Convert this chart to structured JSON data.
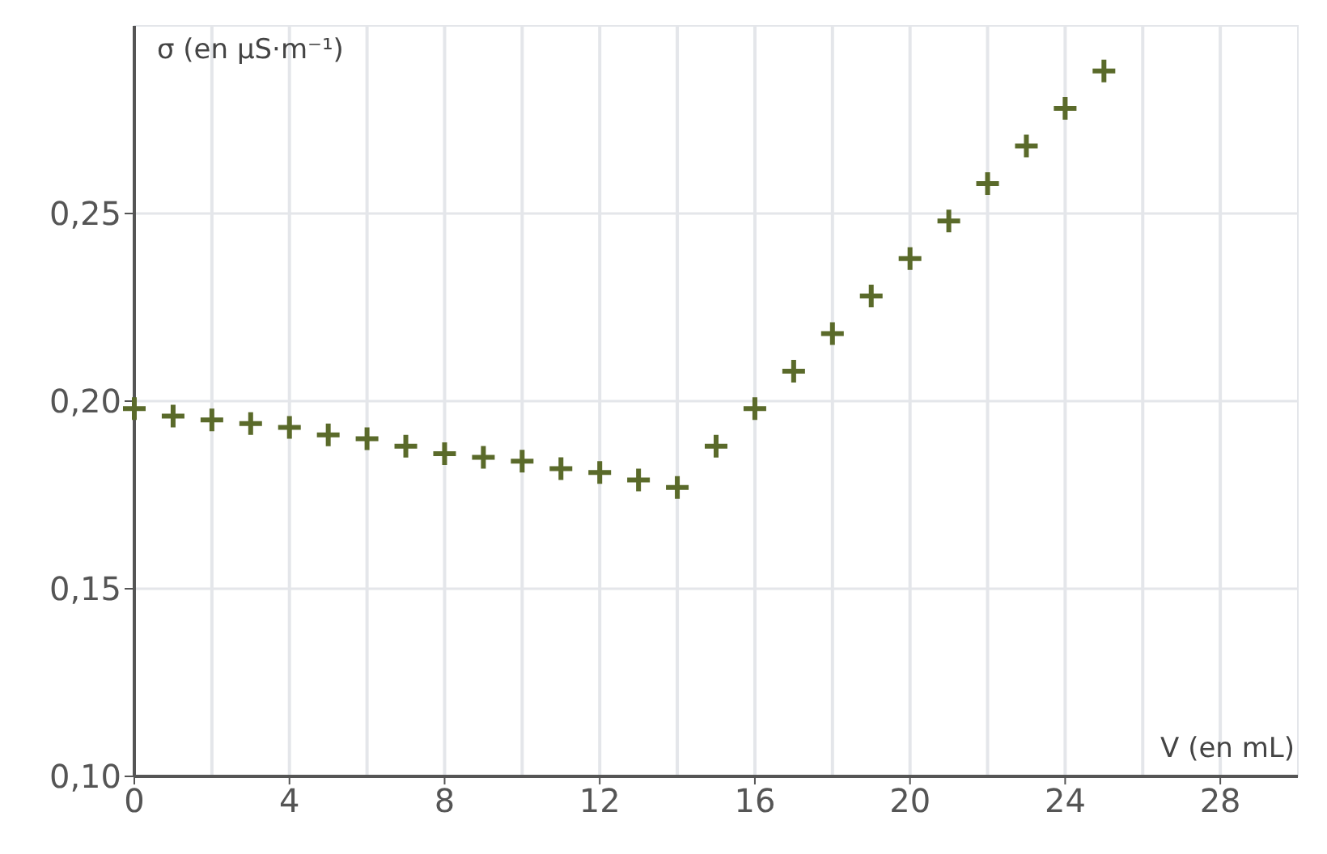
{
  "chart_data": {
    "type": "scatter",
    "xlabel": "V (en mL)",
    "ylabel": "σ (en µS·m⁻¹)",
    "x": [
      0,
      1,
      2,
      3,
      4,
      5,
      6,
      7,
      8,
      9,
      10,
      11,
      12,
      13,
      14,
      15,
      16,
      17,
      18,
      19,
      20,
      21,
      22,
      23,
      24,
      25
    ],
    "series": [
      {
        "color": "#5a6a2a",
        "values": [
          0.198,
          0.196,
          0.195,
          0.194,
          0.193,
          0.191,
          0.19,
          0.188,
          0.186,
          0.185,
          0.184,
          0.182,
          0.181,
          0.179,
          0.177,
          0.188,
          0.198,
          0.208,
          0.218,
          0.228,
          0.238,
          0.248,
          0.258,
          0.268,
          0.278,
          0.288
        ]
      }
    ],
    "marker": "cross",
    "grid": true,
    "xlim": [
      0,
      30
    ],
    "ylim": [
      0.1,
      0.3
    ],
    "xticks": [
      0,
      {
        "value": 2,
        "label": null
      },
      4,
      {
        "value": 6,
        "label": null
      },
      8,
      {
        "value": 10,
        "label": null
      },
      12,
      {
        "value": 14,
        "label": null
      },
      16,
      {
        "value": 18,
        "label": null
      },
      20,
      {
        "value": 22,
        "label": null
      },
      24,
      {
        "value": 26,
        "label": null
      },
      28
    ],
    "yticks": [
      {
        "value": 0.1,
        "label": "0,10"
      },
      {
        "value": 0.15,
        "label": "0,15"
      },
      {
        "value": 0.2,
        "label": "0,20"
      },
      {
        "value": 0.25,
        "label": "0,25"
      }
    ]
  }
}
